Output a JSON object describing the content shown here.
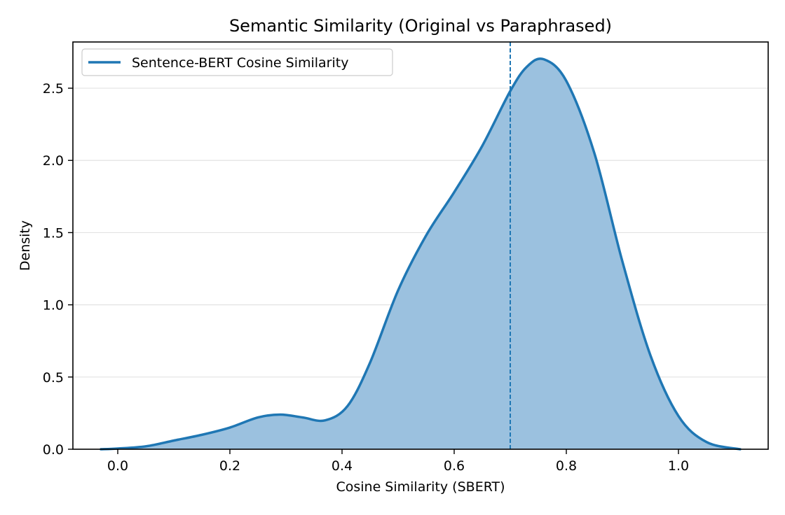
{
  "chart_data": {
    "type": "area",
    "title": "Semantic Similarity (Original vs Paraphrased)",
    "xlabel": "Cosine Similarity (SBERT)",
    "ylabel": "Density",
    "xlim": [
      -0.08,
      1.16
    ],
    "ylim": [
      0,
      2.82
    ],
    "x_ticks": [
      0.0,
      0.2,
      0.4,
      0.6,
      0.8,
      1.0
    ],
    "x_tick_labels": [
      "0.0",
      "0.2",
      "0.4",
      "0.6",
      "0.8",
      "1.0"
    ],
    "y_ticks": [
      0.0,
      0.5,
      1.0,
      1.5,
      2.0,
      2.5
    ],
    "y_tick_labels": [
      "0.0",
      "0.5",
      "1.0",
      "1.5",
      "2.0",
      "2.5"
    ],
    "grid": "horizontal",
    "legend_placement": "top-left",
    "series": [
      {
        "name": "Sentence-BERT Cosine Similarity",
        "color": "#1f77b4",
        "fill_color": "#9bc1df",
        "x": [
          -0.03,
          0.0,
          0.05,
          0.1,
          0.15,
          0.2,
          0.25,
          0.29,
          0.33,
          0.37,
          0.41,
          0.45,
          0.5,
          0.55,
          0.6,
          0.65,
          0.7,
          0.73,
          0.76,
          0.8,
          0.85,
          0.9,
          0.95,
          1.0,
          1.05,
          1.11
        ],
        "y": [
          0.0,
          0.005,
          0.02,
          0.06,
          0.1,
          0.15,
          0.22,
          0.24,
          0.22,
          0.2,
          0.3,
          0.6,
          1.1,
          1.48,
          1.78,
          2.1,
          2.48,
          2.65,
          2.7,
          2.55,
          2.05,
          1.3,
          0.65,
          0.23,
          0.05,
          0.0
        ]
      }
    ],
    "annotations": [
      {
        "type": "vline",
        "x": 0.7,
        "style": "dashed",
        "color": "#1f77b4"
      }
    ]
  }
}
